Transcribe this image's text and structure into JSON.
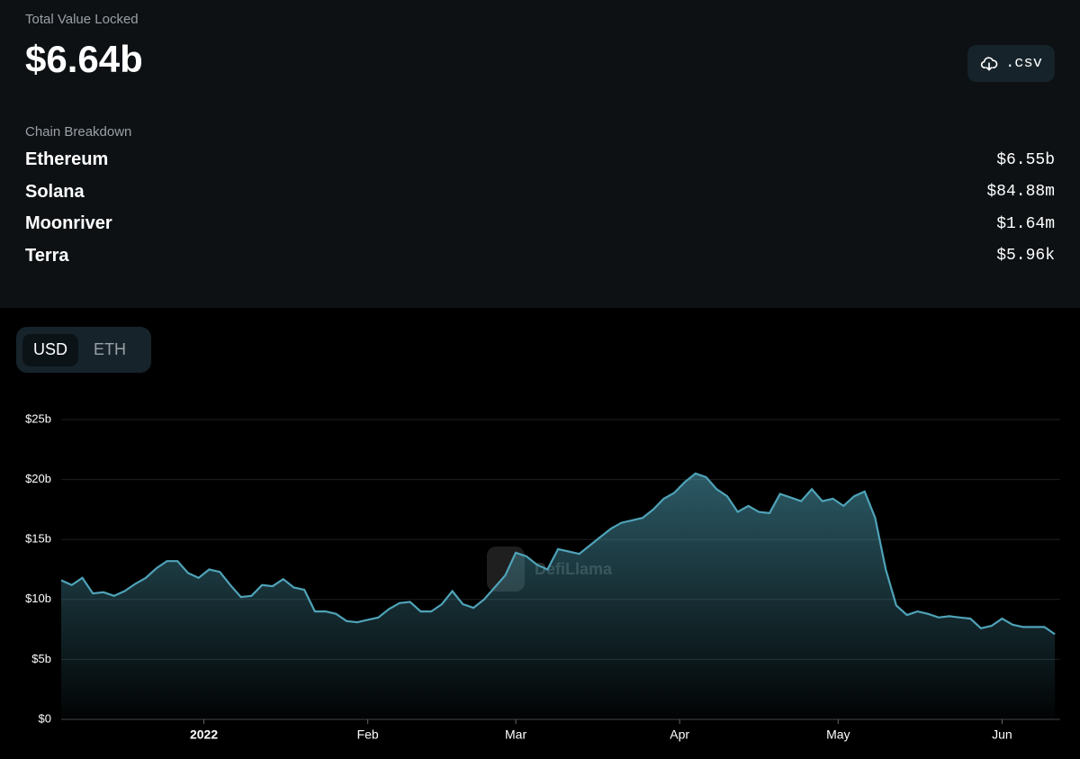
{
  "header": {
    "label": "Total Value Locked",
    "value": "$6.64b",
    "csv_button": ".csv"
  },
  "chain_breakdown": {
    "label": "Chain Breakdown",
    "rows": [
      {
        "name": "Ethereum",
        "value": "$6.55b"
      },
      {
        "name": "Solana",
        "value": "$84.88m"
      },
      {
        "name": "Moonriver",
        "value": "$1.64m"
      },
      {
        "name": "Terra",
        "value": "$5.96k"
      }
    ]
  },
  "toggle": {
    "options": [
      "USD",
      "ETH"
    ],
    "selected": "USD"
  },
  "chart_data": {
    "type": "area",
    "watermark": "DefiLlama",
    "color": "#4fa3b8",
    "grid": true,
    "x": [
      0,
      2,
      4,
      6,
      8,
      10,
      12,
      14,
      16,
      18,
      20,
      22,
      24,
      26,
      28,
      30,
      32,
      34,
      36,
      38,
      40,
      42,
      44,
      46,
      48,
      50,
      52,
      54,
      56,
      58,
      60,
      62,
      64,
      66,
      68,
      70,
      72,
      74,
      76,
      78,
      80,
      82,
      84,
      86,
      88,
      90,
      92,
      94,
      96,
      98,
      100,
      102,
      104,
      106,
      108,
      110,
      112,
      114,
      116,
      118,
      120,
      122,
      124,
      126,
      128,
      130,
      132,
      134,
      136,
      138,
      140,
      142,
      144,
      146,
      148,
      150,
      152,
      154,
      156,
      158,
      160,
      162,
      164,
      166,
      168,
      170,
      172,
      174,
      176,
      178,
      180,
      182,
      184,
      186,
      188
    ],
    "values": [
      11.6,
      11.2,
      11.8,
      10.5,
      10.6,
      10.3,
      10.7,
      11.3,
      11.8,
      12.6,
      13.2,
      13.2,
      12.2,
      11.8,
      12.5,
      12.3,
      11.2,
      10.2,
      10.3,
      11.2,
      11.1,
      11.7,
      11.0,
      10.8,
      9.0,
      9.0,
      8.8,
      8.2,
      8.1,
      8.3,
      8.5,
      9.2,
      9.7,
      9.8,
      9.0,
      9.0,
      9.6,
      10.7,
      9.6,
      9.3,
      10.0,
      11.0,
      12.0,
      13.9,
      13.6,
      12.9,
      12.5,
      14.2,
      14.0,
      13.8,
      14.5,
      15.2,
      15.9,
      16.4,
      16.6,
      16.8,
      17.5,
      18.4,
      18.9,
      19.8,
      20.5,
      20.2,
      19.2,
      18.6,
      17.3,
      17.8,
      17.3,
      17.2,
      18.8,
      18.5,
      18.2,
      19.2,
      18.2,
      18.4,
      17.8,
      18.6,
      19.0,
      16.8,
      12.5,
      9.5,
      8.7,
      9.0,
      8.8,
      8.5,
      8.6,
      8.5,
      8.4,
      7.6,
      7.8,
      8.4,
      7.9,
      7.7,
      7.7,
      7.7,
      7.1
    ],
    "xlim": [
      0,
      189
    ],
    "xticks": [
      {
        "value": 27,
        "label": "2022"
      },
      {
        "value": 58,
        "label": "Feb"
      },
      {
        "value": 86,
        "label": "Mar"
      },
      {
        "value": 117,
        "label": "Apr"
      },
      {
        "value": 147,
        "label": "May"
      },
      {
        "value": 178,
        "label": "Jun"
      }
    ],
    "ylim": [
      0,
      25
    ],
    "yticks": [
      {
        "value": 0,
        "label": "$0"
      },
      {
        "value": 5,
        "label": "$5b"
      },
      {
        "value": 10,
        "label": "$10b"
      },
      {
        "value": 15,
        "label": "$15b"
      },
      {
        "value": 20,
        "label": "$20b"
      },
      {
        "value": 25,
        "label": "$25b"
      }
    ]
  }
}
